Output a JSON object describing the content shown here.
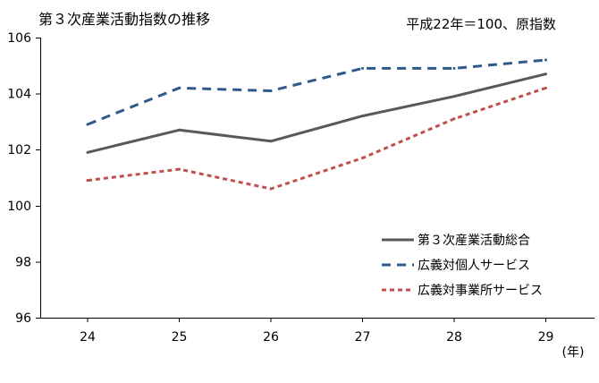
{
  "chart_data": {
    "type": "line",
    "title": "第３次産業活動指数の推移",
    "subtitle": "平成22年＝100、原指数",
    "x_unit": "(年)",
    "categories": [
      "24",
      "25",
      "26",
      "27",
      "28",
      "29"
    ],
    "ylim": [
      96,
      106
    ],
    "yticks": [
      "96",
      "98",
      "100",
      "102",
      "104",
      "106"
    ],
    "grid": false,
    "legend_position": "bottom-right",
    "series": [
      {
        "name": "第３次産業活動総合",
        "color": "#595959",
        "dash": "solid",
        "values": [
          101.9,
          102.7,
          102.3,
          103.2,
          103.9,
          104.7
        ]
      },
      {
        "name": "広義対個人サービス",
        "color": "#2e5a8a",
        "dash": "dashed",
        "values": [
          102.9,
          104.2,
          104.1,
          104.9,
          104.9,
          105.2
        ]
      },
      {
        "name": "広義対事業所サービス",
        "color": "#c0504d",
        "dash": "dotted",
        "values": [
          100.9,
          101.3,
          100.6,
          101.7,
          103.1,
          104.2
        ]
      }
    ]
  }
}
